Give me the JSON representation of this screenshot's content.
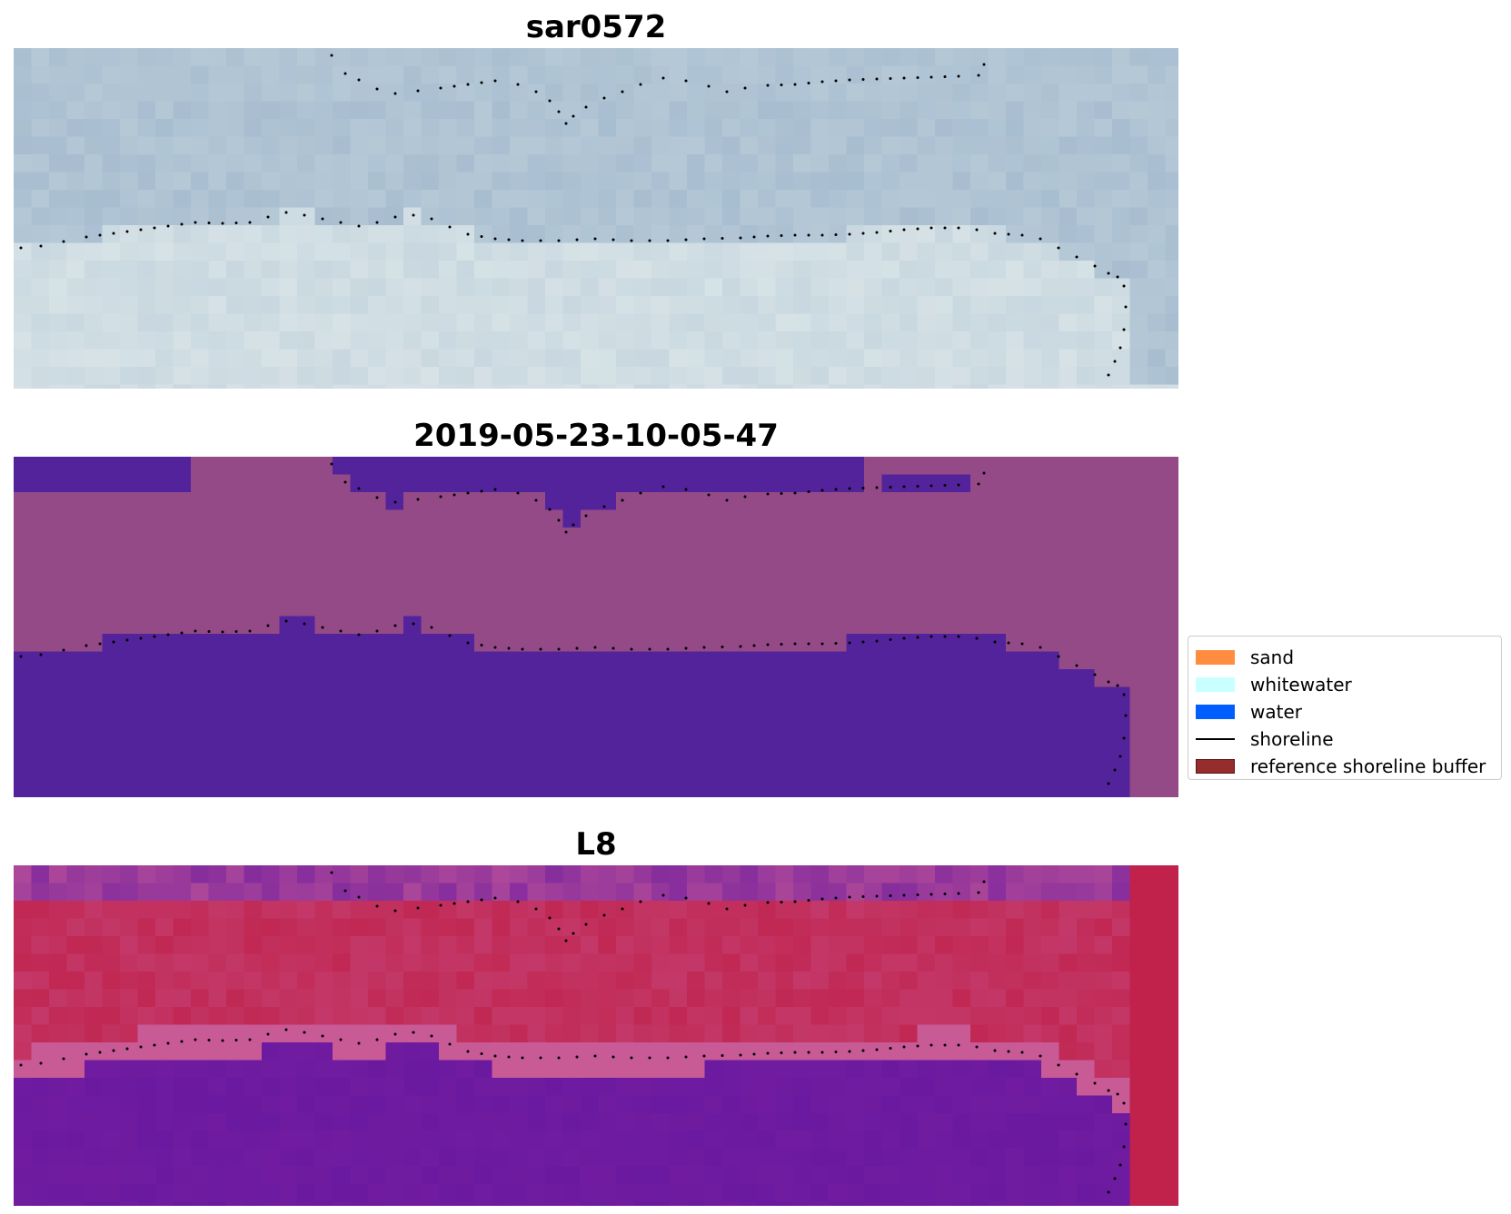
{
  "panels": [
    {
      "title": "sar0572",
      "kind": "rgb"
    },
    {
      "title": "2019-05-23-10-05-47",
      "kind": "classified"
    },
    {
      "title": "L8",
      "kind": "index"
    }
  ],
  "legend": {
    "items": [
      {
        "label": "sand",
        "color": "#ff8c3f",
        "type": "patch"
      },
      {
        "label": "whitewater",
        "color": "#c8ffff",
        "type": "patch"
      },
      {
        "label": "water",
        "color": "#005eff",
        "type": "patch"
      },
      {
        "label": "shoreline",
        "color": "#000000",
        "type": "line"
      },
      {
        "label": "reference shoreline buffer",
        "color": "#962d2d",
        "type": "patch"
      }
    ]
  },
  "colors": {
    "rgb_water": "#9fb7cc",
    "rgb_land": "#d6e2e6",
    "class_sand": "#944a86",
    "class_water": "#53239b",
    "index_water": "#c0224b",
    "index_land": "#6a1aa0",
    "shoreline_dots": "#000000"
  }
}
